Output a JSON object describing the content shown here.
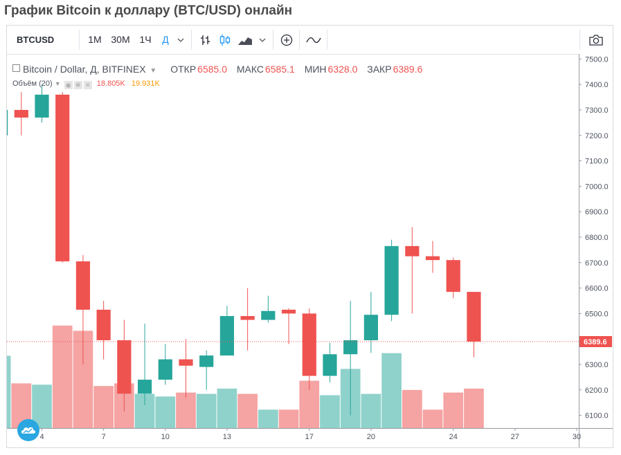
{
  "page": {
    "title": "График Bitcoin к доллару (BTC/USD) онлайн"
  },
  "toolbar": {
    "symbol": "BTCUSD",
    "intervals": [
      "1М",
      "30М",
      "1Ч",
      "Д"
    ],
    "active_interval": "Д",
    "icons": [
      "chevron-down-icon",
      "bar-style-icon",
      "candle-style-icon",
      "area-style-icon",
      "chevron-down-icon",
      "add-indicator-icon",
      "compare-icon",
      "camera-icon"
    ]
  },
  "legend": {
    "title": "Bitcoin / Dollar, Д, BITFINEX",
    "open_label": "ОТКР",
    "open": "6585.0",
    "high_label": "МАКС",
    "high": "6585.1",
    "low_label": "МИН",
    "low": "6328.0",
    "close_label": "ЗАКР",
    "close": "6389.6"
  },
  "volume_legend": {
    "label": "Объём (20)",
    "v1": "18.805K",
    "v2": "19.931K"
  },
  "colors": {
    "up": "#26a69a",
    "down": "#ef5350",
    "up_vol": "#8fd2cb",
    "down_vol": "#f5a3a3",
    "price_line": "#ef5350"
  },
  "chart_data": {
    "type": "candlestick",
    "price_axis": {
      "min": 6050,
      "max": 7520,
      "ticks": [
        6100,
        6200,
        6300,
        6400,
        6500,
        6600,
        6700,
        6800,
        6900,
        7000,
        7100,
        7200,
        7300,
        7400,
        7500
      ]
    },
    "last_price": 6389.6,
    "x_tick_labels": [
      {
        "day": 4,
        "label": "4"
      },
      {
        "day": 7,
        "label": "7"
      },
      {
        "day": 10,
        "label": "10"
      },
      {
        "day": 13,
        "label": "13"
      },
      {
        "day": 17,
        "label": "17"
      },
      {
        "day": 20,
        "label": "20"
      },
      {
        "day": 24,
        "label": "24"
      },
      {
        "day": 27,
        "label": "27"
      },
      {
        "day": 30,
        "label": "30"
      }
    ],
    "x_range": [
      2.3,
      30.1
    ],
    "candles": [
      {
        "day": 2,
        "o": 7200,
        "h": 7300,
        "l": 7200,
        "c": 7300
      },
      {
        "day": 3,
        "o": 7300,
        "h": 7370,
        "l": 7200,
        "c": 7270
      },
      {
        "day": 4,
        "o": 7270,
        "h": 7400,
        "l": 7250,
        "c": 7360
      },
      {
        "day": 5,
        "o": 7360,
        "h": 7370,
        "l": 6700,
        "c": 6705
      },
      {
        "day": 6,
        "o": 6705,
        "h": 6730,
        "l": 6300,
        "c": 6515
      },
      {
        "day": 7,
        "o": 6515,
        "h": 6550,
        "l": 6320,
        "c": 6395
      },
      {
        "day": 8,
        "o": 6395,
        "h": 6475,
        "l": 6115,
        "c": 6185
      },
      {
        "day": 9,
        "o": 6185,
        "h": 6460,
        "l": 6140,
        "c": 6240
      },
      {
        "day": 10,
        "o": 6240,
        "h": 6380,
        "l": 6220,
        "c": 6320
      },
      {
        "day": 11,
        "o": 6320,
        "h": 6400,
        "l": 6170,
        "c": 6295
      },
      {
        "day": 12,
        "o": 6290,
        "h": 6355,
        "l": 6200,
        "c": 6335
      },
      {
        "day": 13,
        "o": 6335,
        "h": 6530,
        "l": 6335,
        "c": 6490
      },
      {
        "day": 14,
        "o": 6490,
        "h": 6600,
        "l": 6355,
        "c": 6475
      },
      {
        "day": 15,
        "o": 6475,
        "h": 6570,
        "l": 6465,
        "c": 6510
      },
      {
        "day": 16,
        "o": 6515,
        "h": 6520,
        "l": 6380,
        "c": 6500
      },
      {
        "day": 17,
        "o": 6500,
        "h": 6520,
        "l": 6200,
        "c": 6255
      },
      {
        "day": 18,
        "o": 6255,
        "h": 6385,
        "l": 6230,
        "c": 6340
      },
      {
        "day": 19,
        "o": 6340,
        "h": 6550,
        "l": 6100,
        "c": 6395
      },
      {
        "day": 20,
        "o": 6395,
        "h": 6585,
        "l": 6345,
        "c": 6495
      },
      {
        "day": 21,
        "o": 6495,
        "h": 6790,
        "l": 6470,
        "c": 6765
      },
      {
        "day": 22,
        "o": 6765,
        "h": 6840,
        "l": 6500,
        "c": 6725
      },
      {
        "day": 23,
        "o": 6725,
        "h": 6785,
        "l": 6660,
        "c": 6710
      },
      {
        "day": 24,
        "o": 6710,
        "h": 6720,
        "l": 6560,
        "c": 6585
      },
      {
        "day": 25,
        "o": 6585,
        "h": 6585.1,
        "l": 6328,
        "c": 6389.6
      }
    ],
    "volume": [
      {
        "day": 2,
        "v": 0.55,
        "up": true
      },
      {
        "day": 3,
        "v": 0.34,
        "up": false
      },
      {
        "day": 4,
        "v": 0.33,
        "up": true
      },
      {
        "day": 5,
        "v": 0.78,
        "up": false
      },
      {
        "day": 6,
        "v": 0.74,
        "up": false
      },
      {
        "day": 7,
        "v": 0.32,
        "up": false
      },
      {
        "day": 8,
        "v": 0.34,
        "up": false
      },
      {
        "day": 9,
        "v": 0.26,
        "up": true
      },
      {
        "day": 10,
        "v": 0.24,
        "up": true
      },
      {
        "day": 11,
        "v": 0.27,
        "up": false
      },
      {
        "day": 12,
        "v": 0.26,
        "up": true
      },
      {
        "day": 13,
        "v": 0.3,
        "up": true
      },
      {
        "day": 14,
        "v": 0.26,
        "up": false
      },
      {
        "day": 15,
        "v": 0.14,
        "up": true
      },
      {
        "day": 16,
        "v": 0.14,
        "up": false
      },
      {
        "day": 17,
        "v": 0.36,
        "up": false
      },
      {
        "day": 18,
        "v": 0.25,
        "up": true
      },
      {
        "day": 19,
        "v": 0.45,
        "up": true
      },
      {
        "day": 20,
        "v": 0.26,
        "up": true
      },
      {
        "day": 21,
        "v": 0.57,
        "up": true
      },
      {
        "day": 22,
        "v": 0.29,
        "up": false
      },
      {
        "day": 23,
        "v": 0.14,
        "up": false
      },
      {
        "day": 24,
        "v": 0.27,
        "up": false
      },
      {
        "day": 25,
        "v": 0.3,
        "up": false
      }
    ]
  }
}
